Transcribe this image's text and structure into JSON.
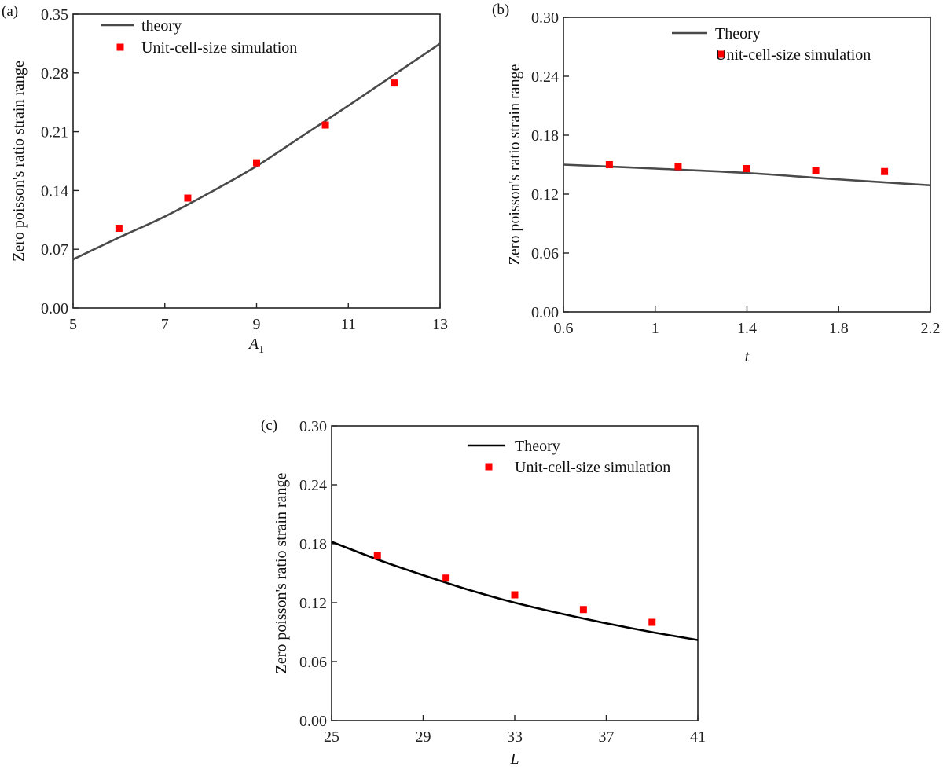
{
  "chart_data": [
    {
      "type": "line",
      "panel_label": "(a)",
      "title": "",
      "xlabel": "A",
      "xlabel_subscript": "1",
      "ylabel": "Zero poisson's ratio strain range",
      "xlim": [
        5,
        13
      ],
      "ylim": [
        0,
        0.35
      ],
      "xticks": [
        "5",
        "7",
        "9",
        "11",
        "13"
      ],
      "xtick_values": [
        5,
        7,
        9,
        11,
        13
      ],
      "yticks": [
        "0.00",
        "0.07",
        "0.14",
        "0.21",
        "0.28",
        "0.35"
      ],
      "ytick_values": [
        0,
        0.07,
        0.14,
        0.21,
        0.28,
        0.35
      ],
      "legend_placement": "top-left",
      "grid": false,
      "series": [
        {
          "name": "theory",
          "kind": "line",
          "color": "#4a4a4a",
          "x": [
            5,
            6,
            7,
            8,
            9,
            10,
            11,
            12,
            13
          ],
          "y": [
            0.058,
            0.084,
            0.109,
            0.138,
            0.169,
            0.205,
            0.241,
            0.278,
            0.315
          ]
        },
        {
          "name": "Unit-cell-size simulation",
          "kind": "scatter",
          "color": "#ff0000",
          "x": [
            6,
            7.5,
            9,
            10.5,
            12
          ],
          "y": [
            0.095,
            0.131,
            0.173,
            0.218,
            0.268
          ]
        }
      ]
    },
    {
      "type": "line",
      "panel_label": "(b)",
      "title": "",
      "xlabel": "t",
      "xlabel_subscript": "",
      "ylabel": "Zero poisson's ratio strain range",
      "xlim": [
        0.6,
        2.2
      ],
      "ylim": [
        0,
        0.3
      ],
      "xticks": [
        "0.6",
        "1",
        "1.4",
        "1.8",
        "2.2"
      ],
      "xtick_values": [
        0.6,
        1.0,
        1.4,
        1.8,
        2.2
      ],
      "yticks": [
        "0.00",
        "0.06",
        "0.12",
        "0.18",
        "0.24",
        "0.30"
      ],
      "ytick_values": [
        0,
        0.06,
        0.12,
        0.18,
        0.24,
        0.3
      ],
      "legend_placement": "top-right",
      "grid": false,
      "series": [
        {
          "name": "Theory",
          "kind": "line",
          "color": "#4a4a4a",
          "x": [
            0.6,
            1.0,
            1.4,
            1.8,
            2.2
          ],
          "y": [
            0.15,
            0.146,
            0.1415,
            0.135,
            0.129
          ]
        },
        {
          "name": "Unit-cell-size simulation",
          "kind": "scatter",
          "color": "#ff0000",
          "x": [
            0.8,
            1.1,
            1.4,
            1.7,
            2.0
          ],
          "y": [
            0.15,
            0.148,
            0.146,
            0.144,
            0.143
          ]
        }
      ]
    },
    {
      "type": "line",
      "panel_label": "(c)",
      "title": "",
      "xlabel": "L",
      "xlabel_subscript": "",
      "ylabel": "Zero poisson's ratio strain range",
      "xlim": [
        25,
        41
      ],
      "ylim": [
        0,
        0.3
      ],
      "xticks": [
        "25",
        "29",
        "33",
        "37",
        "41"
      ],
      "xtick_values": [
        25,
        29,
        33,
        37,
        41
      ],
      "yticks": [
        "0.00",
        "0.06",
        "0.12",
        "0.18",
        "0.24",
        "0.30"
      ],
      "ytick_values": [
        0,
        0.06,
        0.12,
        0.18,
        0.24,
        0.3
      ],
      "legend_placement": "top-right",
      "grid": false,
      "series": [
        {
          "name": "Theory",
          "kind": "line",
          "color": "#000000",
          "x": [
            25,
            27,
            29,
            31,
            33,
            35,
            37,
            39,
            41
          ],
          "y": [
            0.182,
            0.164,
            0.148,
            0.133,
            0.12,
            0.109,
            0.099,
            0.09,
            0.082
          ]
        },
        {
          "name": "Unit-cell-size simulation",
          "kind": "scatter",
          "color": "#ff0000",
          "x": [
            27,
            30,
            33,
            36,
            39
          ],
          "y": [
            0.168,
            0.145,
            0.128,
            0.113,
            0.1
          ]
        }
      ]
    }
  ]
}
